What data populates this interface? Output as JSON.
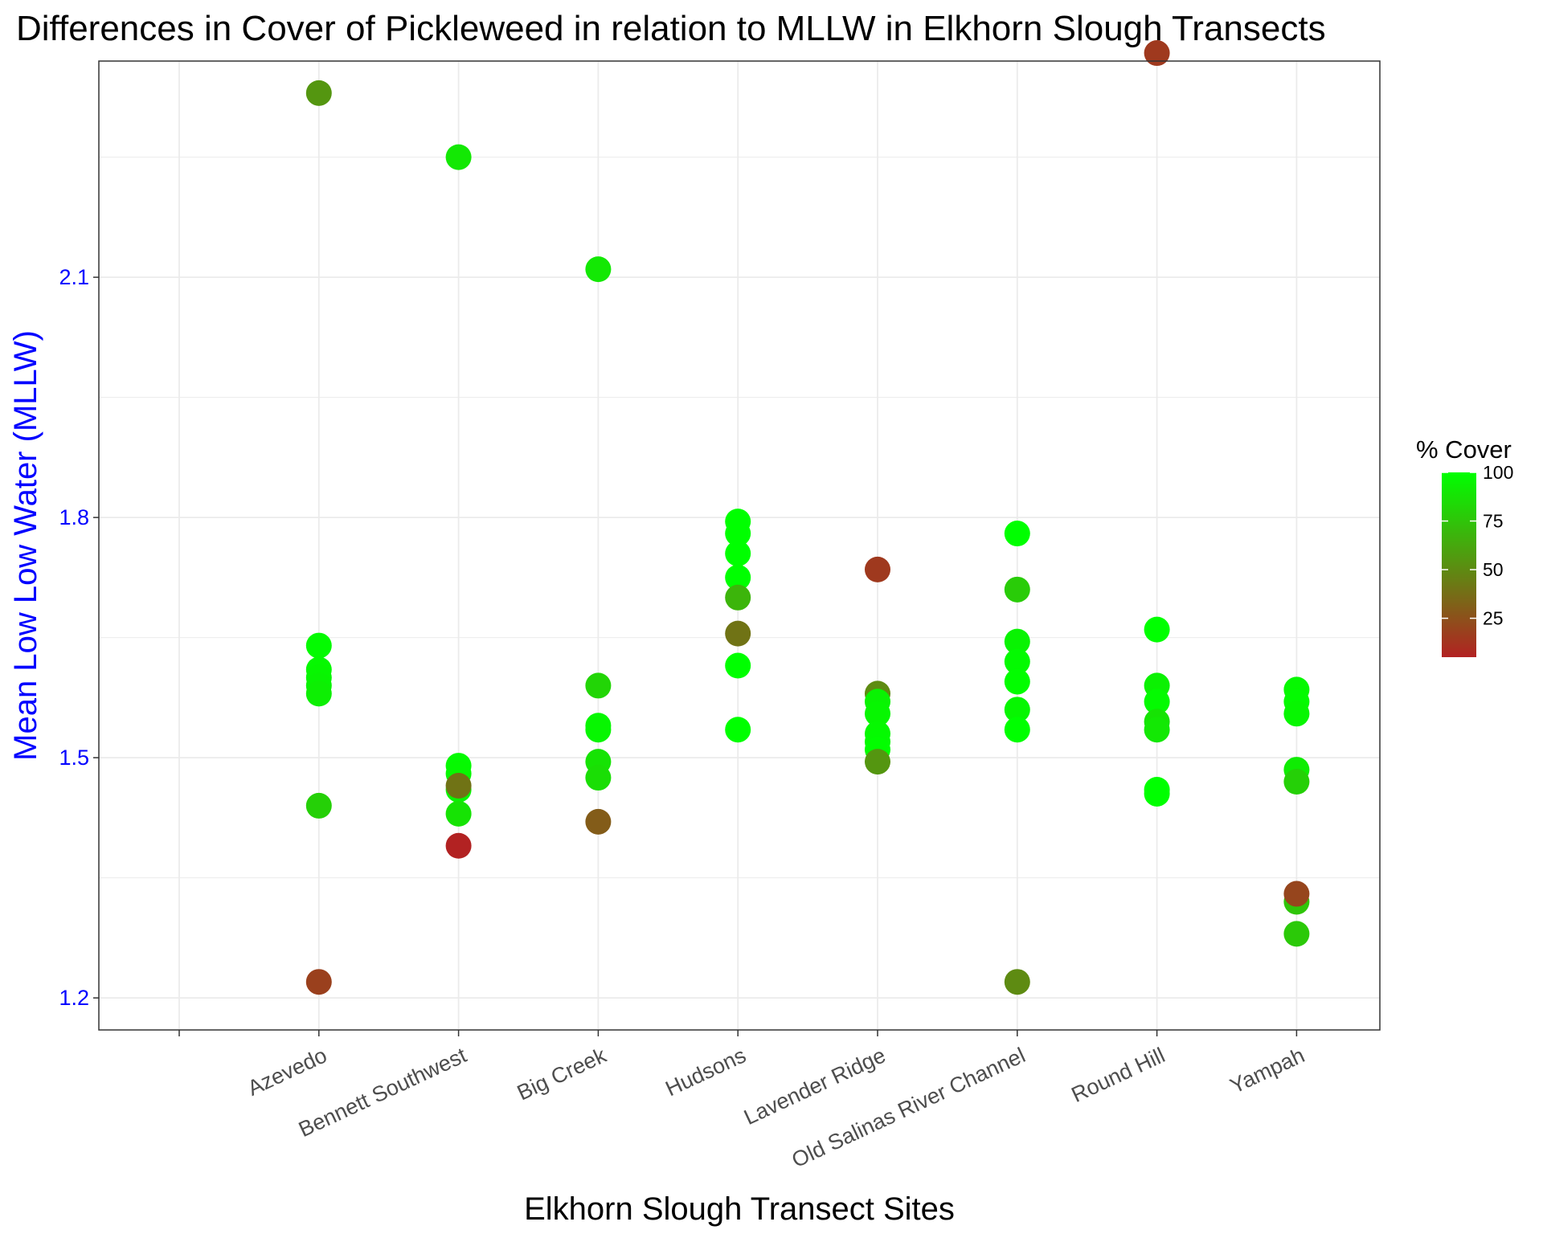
{
  "chart_data": {
    "type": "scatter",
    "title": "Differences in Cover of Pickleweed in relation to MLLW in Elkhorn Slough Transects",
    "xlabel": "Elkhorn Slough Transect Sites",
    "ylabel": "Mean Low Low Water (MLLW)",
    "categories": [
      "",
      "Azevedo",
      "Bennett Southwest",
      "Big Creek",
      "Hudsons",
      "Lavender Ridge",
      "Old Salinas River Channel",
      "Round Hill",
      "Yampah"
    ],
    "ylim": [
      1.16,
      2.37
    ],
    "yticks": [
      1.2,
      1.5,
      1.8,
      2.1
    ],
    "ytick_labels": [
      "1.2",
      "1.5",
      "1.8",
      "2.1"
    ],
    "grid": true,
    "legend": {
      "title": "% Cover",
      "position": "right",
      "breaks": [
        25,
        50,
        75,
        100
      ],
      "labels": [
        "25",
        "50",
        "75",
        "100"
      ],
      "range": [
        5,
        100
      ],
      "low_color": "#b22222",
      "high_color": "#00ff00"
    },
    "colors": {
      "axis_text_y": "#0000ff",
      "axis_title_y": "#0000ff",
      "axis_text_x": "#4d4d4d",
      "grid": "#ebebeb",
      "panel_border": "#333333"
    },
    "points": [
      {
        "site": "Azevedo",
        "mllw": 2.33,
        "cover": 55
      },
      {
        "site": "Azevedo",
        "mllw": 1.64,
        "cover": 98
      },
      {
        "site": "Azevedo",
        "mllw": 1.61,
        "cover": 97
      },
      {
        "site": "Azevedo",
        "mllw": 1.6,
        "cover": 96
      },
      {
        "site": "Azevedo",
        "mllw": 1.59,
        "cover": 95
      },
      {
        "site": "Azevedo",
        "mllw": 1.58,
        "cover": 93
      },
      {
        "site": "Azevedo",
        "mllw": 1.44,
        "cover": 80
      },
      {
        "site": "Azevedo",
        "mllw": 1.22,
        "cover": 18
      },
      {
        "site": "Bennett Southwest",
        "mllw": 2.25,
        "cover": 90
      },
      {
        "site": "Bennett Southwest",
        "mllw": 1.49,
        "cover": 98
      },
      {
        "site": "Bennett Southwest",
        "mllw": 1.48,
        "cover": 97
      },
      {
        "site": "Bennett Southwest",
        "mllw": 1.46,
        "cover": 96
      },
      {
        "site": "Bennett Southwest",
        "mllw": 1.43,
        "cover": 88
      },
      {
        "site": "Bennett Southwest",
        "mllw": 1.465,
        "cover": 40
      },
      {
        "site": "Bennett Southwest",
        "mllw": 1.39,
        "cover": 5
      },
      {
        "site": "Big Creek",
        "mllw": 2.11,
        "cover": 90
      },
      {
        "site": "Big Creek",
        "mllw": 1.59,
        "cover": 82
      },
      {
        "site": "Big Creek",
        "mllw": 1.54,
        "cover": 97
      },
      {
        "site": "Big Creek",
        "mllw": 1.535,
        "cover": 96
      },
      {
        "site": "Big Creek",
        "mllw": 1.495,
        "cover": 88
      },
      {
        "site": "Big Creek",
        "mllw": 1.475,
        "cover": 86
      },
      {
        "site": "Big Creek",
        "mllw": 1.42,
        "cover": 30
      },
      {
        "site": "Hudsons",
        "mllw": 1.795,
        "cover": 100
      },
      {
        "site": "Hudsons",
        "mllw": 1.78,
        "cover": 100
      },
      {
        "site": "Hudsons",
        "mllw": 1.755,
        "cover": 100
      },
      {
        "site": "Hudsons",
        "mllw": 1.725,
        "cover": 100
      },
      {
        "site": "Hudsons",
        "mllw": 1.7,
        "cover": 68
      },
      {
        "site": "Hudsons",
        "mllw": 1.655,
        "cover": 40
      },
      {
        "site": "Hudsons",
        "mllw": 1.615,
        "cover": 100
      },
      {
        "site": "Hudsons",
        "mllw": 1.535,
        "cover": 100
      },
      {
        "site": "Lavender Ridge",
        "mllw": 1.735,
        "cover": 15
      },
      {
        "site": "Lavender Ridge",
        "mllw": 1.58,
        "cover": 50
      },
      {
        "site": "Lavender Ridge",
        "mllw": 1.57,
        "cover": 95
      },
      {
        "site": "Lavender Ridge",
        "mllw": 1.555,
        "cover": 96
      },
      {
        "site": "Lavender Ridge",
        "mllw": 1.53,
        "cover": 97
      },
      {
        "site": "Lavender Ridge",
        "mllw": 1.52,
        "cover": 98
      },
      {
        "site": "Lavender Ridge",
        "mllw": 1.51,
        "cover": 99
      },
      {
        "site": "Lavender Ridge",
        "mllw": 1.495,
        "cover": 55
      },
      {
        "site": "Old Salinas River Channel",
        "mllw": 1.78,
        "cover": 100
      },
      {
        "site": "Old Salinas River Channel",
        "mllw": 1.71,
        "cover": 78
      },
      {
        "site": "Old Salinas River Channel",
        "mllw": 1.645,
        "cover": 95
      },
      {
        "site": "Old Salinas River Channel",
        "mllw": 1.62,
        "cover": 98
      },
      {
        "site": "Old Salinas River Channel",
        "mllw": 1.595,
        "cover": 99
      },
      {
        "site": "Old Salinas River Channel",
        "mllw": 1.56,
        "cover": 96
      },
      {
        "site": "Old Salinas River Channel",
        "mllw": 1.535,
        "cover": 100
      },
      {
        "site": "Old Salinas River Channel",
        "mllw": 1.22,
        "cover": 50
      },
      {
        "site": "Round Hill",
        "mllw": 2.38,
        "cover": 15
      },
      {
        "site": "Round Hill",
        "mllw": 1.66,
        "cover": 100
      },
      {
        "site": "Round Hill",
        "mllw": 1.59,
        "cover": 94
      },
      {
        "site": "Round Hill",
        "mllw": 1.57,
        "cover": 98
      },
      {
        "site": "Round Hill",
        "mllw": 1.545,
        "cover": 88
      },
      {
        "site": "Round Hill",
        "mllw": 1.535,
        "cover": 90
      },
      {
        "site": "Round Hill",
        "mllw": 1.46,
        "cover": 100
      },
      {
        "site": "Round Hill",
        "mllw": 1.455,
        "cover": 100
      },
      {
        "site": "Yampah",
        "mllw": 1.585,
        "cover": 97
      },
      {
        "site": "Yampah",
        "mllw": 1.57,
        "cover": 98
      },
      {
        "site": "Yampah",
        "mllw": 1.555,
        "cover": 96
      },
      {
        "site": "Yampah",
        "mllw": 1.485,
        "cover": 92
      },
      {
        "site": "Yampah",
        "mllw": 1.47,
        "cover": 80
      },
      {
        "site": "Yampah",
        "mllw": 1.32,
        "cover": 75
      },
      {
        "site": "Yampah",
        "mllw": 1.33,
        "cover": 20
      },
      {
        "site": "Yampah",
        "mllw": 1.28,
        "cover": 77
      }
    ]
  }
}
